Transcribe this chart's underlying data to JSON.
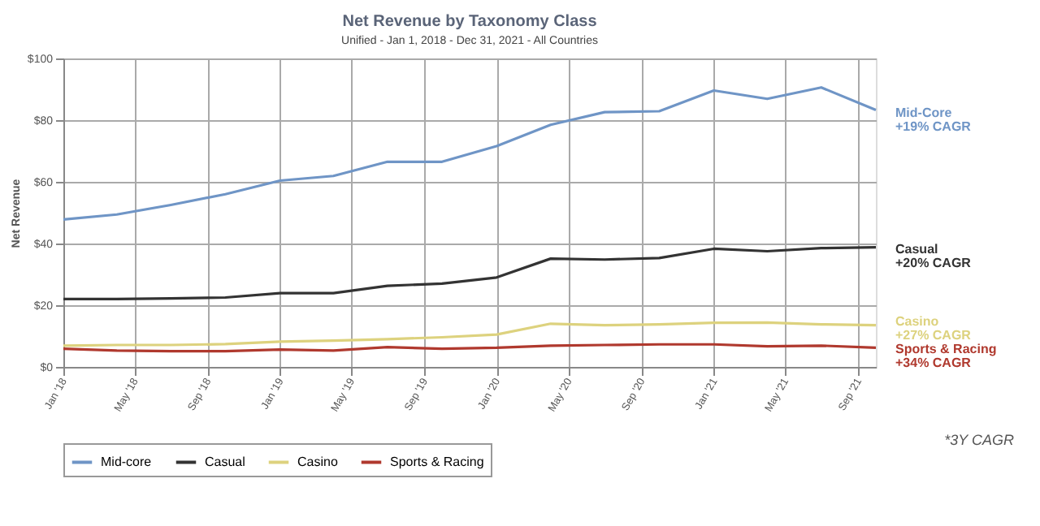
{
  "chart_data": {
    "type": "line",
    "title": "Net Revenue by Taxonomy Class",
    "subtitle": "Unified - Jan 1, 2018 - Dec 31, 2021 - All Countries",
    "ylabel": "Net Revenue",
    "x": [
      "2018-01",
      "2018-04",
      "2018-07",
      "2018-10",
      "2019-01",
      "2019-04",
      "2019-07",
      "2019-10",
      "2020-01",
      "2020-04",
      "2020-07",
      "2020-10",
      "2021-01",
      "2021-04",
      "2021-07",
      "2021-10"
    ],
    "series": [
      {
        "name": "Mid-core",
        "color": "#6f95c6",
        "values": [
          47.8,
          49.4,
          52.5,
          56,
          60.4,
          61.9,
          66.5,
          66.5,
          71.6,
          78.5,
          82.6,
          82.9,
          89.6,
          86.9,
          90.6,
          83.3
        ]
      },
      {
        "name": "Casual",
        "color": "#333333",
        "values": [
          22,
          22,
          22.2,
          22.5,
          23.9,
          23.9,
          26.3,
          27,
          29,
          35.1,
          34.8,
          35.3,
          38.3,
          37.5,
          38.5,
          38.8
        ]
      },
      {
        "name": "Casino",
        "color": "#ddd27e",
        "values": [
          6.9,
          7.1,
          7.1,
          7.4,
          8.2,
          8.5,
          9,
          9.6,
          10.5,
          14,
          13.5,
          13.8,
          14.3,
          14.4,
          13.8,
          13.5
        ]
      },
      {
        "name": "Sports & Racing",
        "color": "#b0392e",
        "values": [
          5.9,
          5.3,
          5.1,
          5.1,
          5.6,
          5.3,
          6.4,
          5.9,
          6.2,
          6.9,
          7.1,
          7.3,
          7.3,
          6.7,
          6.9,
          6.2
        ]
      }
    ],
    "xlim": [
      "2018-01",
      "2021-10"
    ],
    "xticks": [
      {
        "value": "2018-01",
        "label": "Jan '18"
      },
      {
        "value": "2018-05",
        "label": "May '18"
      },
      {
        "value": "2018-09",
        "label": "Sep '18"
      },
      {
        "value": "2019-01",
        "label": "Jan '19"
      },
      {
        "value": "2019-05",
        "label": "May '19"
      },
      {
        "value": "2019-09",
        "label": "Sep '19"
      },
      {
        "value": "2020-01",
        "label": "Jan '20"
      },
      {
        "value": "2020-05",
        "label": "May '20"
      },
      {
        "value": "2020-09",
        "label": "Sep '20"
      },
      {
        "value": "2021-01",
        "label": "Jan '21"
      },
      {
        "value": "2021-05",
        "label": "May '21"
      },
      {
        "value": "2021-09",
        "label": "Sep '21"
      }
    ],
    "ylim": [
      0,
      100
    ],
    "yticks": [
      {
        "value": 0,
        "label": "$0"
      },
      {
        "value": 20,
        "label": "$20"
      },
      {
        "value": 40,
        "label": "$40"
      },
      {
        "value": 60,
        "label": "$60"
      },
      {
        "value": 80,
        "label": "$80"
      },
      {
        "value": 100,
        "label": "$100"
      }
    ],
    "annotations": [
      {
        "text": "Mid-Core\n+19% CAGR",
        "x": "2021-10",
        "y": 82
      },
      {
        "text": "Casual\n+20% CAGR",
        "x": "2021-10",
        "y": 38
      },
      {
        "text": "Casino\n+27% CAGR",
        "x": "2021-10",
        "y": 14.4
      },
      {
        "text": "Sports & Racing\n+34% CAGR",
        "x": "2021-10",
        "y": 5.5
      },
      "*3Y CAGR"
    ],
    "grid": true,
    "legend": "bottom",
    "marker": "none",
    "line_style": "solid"
  }
}
